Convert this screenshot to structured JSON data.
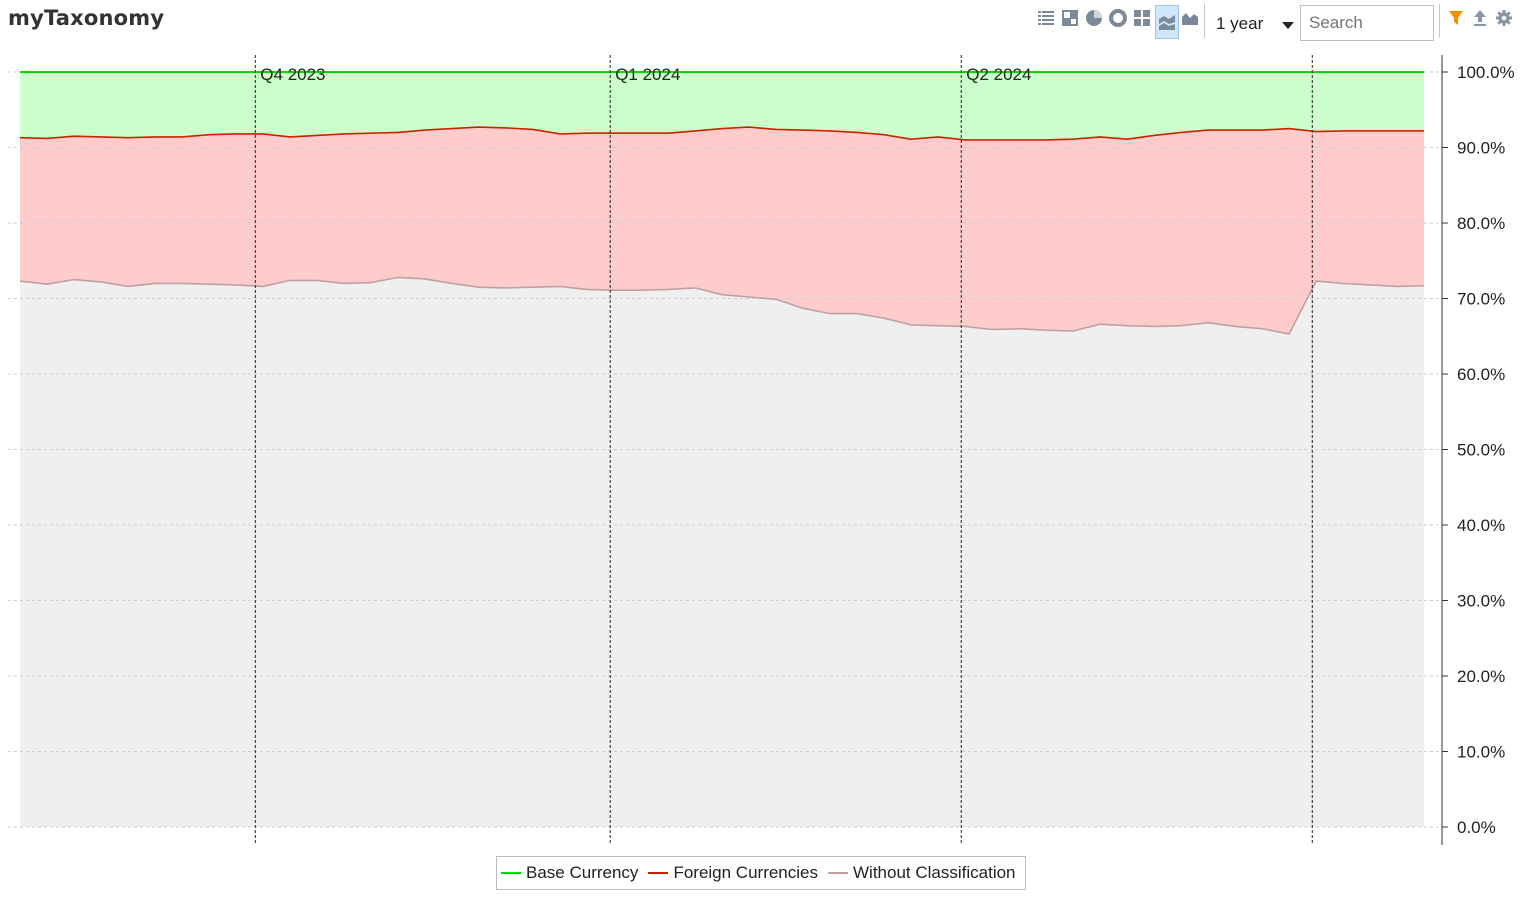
{
  "app": {
    "title": "myTaxonomy"
  },
  "toolbar": {
    "range_value": "1 year",
    "search_placeholder": "Search",
    "icons": [
      "list-icon",
      "treemap-icon",
      "pie-chart-icon",
      "donut-chart-icon",
      "grid-icon",
      "stacked-area-chart-icon",
      "area-chart-icon",
      "filter-icon",
      "export-icon",
      "settings-icon"
    ]
  },
  "colors": {
    "base": "#00dd00",
    "base_fill": "#ccffcc",
    "foreign": "#cc2200",
    "foreign_fill": "#ffcccc",
    "without": "#c0a0a0",
    "without_fill": "#efefef",
    "filter": "#f29000"
  },
  "chart_data": {
    "type": "area",
    "stacked": true,
    "x_start": "2023-08-01",
    "x_end": "2024-07-31",
    "ylim": [
      0,
      100
    ],
    "yticks": [
      "0.0%",
      "10.0%",
      "20.0%",
      "30.0%",
      "40.0%",
      "50.0%",
      "60.0%",
      "70.0%",
      "80.0%",
      "90.0%",
      "100.0%"
    ],
    "quarter_markers": [
      {
        "date": "2023-10-01",
        "label": "Q4 2023"
      },
      {
        "date": "2024-01-01",
        "label": "Q1 2024"
      },
      {
        "date": "2024-04-01",
        "label": "Q2 2024"
      },
      {
        "date": "2024-07-01",
        "label": ""
      }
    ],
    "x": [
      "2023-08-01",
      "2023-08-08",
      "2023-08-15",
      "2023-08-22",
      "2023-08-29",
      "2023-09-05",
      "2023-09-12",
      "2023-09-19",
      "2023-09-26",
      "2023-10-03",
      "2023-10-10",
      "2023-10-17",
      "2023-10-24",
      "2023-10-31",
      "2023-11-07",
      "2023-11-14",
      "2023-11-21",
      "2023-11-28",
      "2023-12-05",
      "2023-12-12",
      "2023-12-19",
      "2023-12-26",
      "2024-01-02",
      "2024-01-09",
      "2024-01-16",
      "2024-01-23",
      "2024-01-30",
      "2024-02-06",
      "2024-02-13",
      "2024-02-20",
      "2024-02-27",
      "2024-03-05",
      "2024-03-12",
      "2024-03-19",
      "2024-03-26",
      "2024-04-02",
      "2024-04-09",
      "2024-04-16",
      "2024-04-23",
      "2024-04-30",
      "2024-05-07",
      "2024-05-14",
      "2024-05-21",
      "2024-05-28",
      "2024-06-04",
      "2024-06-11",
      "2024-06-18",
      "2024-06-25",
      "2024-07-02",
      "2024-07-09",
      "2024-07-16",
      "2024-07-23",
      "2024-07-30"
    ],
    "series": [
      {
        "name": "Without Classification",
        "values": [
          72.3,
          71.9,
          72.5,
          72.2,
          71.6,
          72.0,
          72.0,
          71.9,
          71.8,
          71.6,
          72.4,
          72.4,
          72.0,
          72.1,
          72.8,
          72.6,
          72.0,
          71.5,
          71.4,
          71.5,
          71.6,
          71.2,
          71.1,
          71.1,
          71.2,
          71.4,
          70.5,
          70.2,
          69.9,
          68.7,
          68.0,
          68.0,
          67.4,
          66.5,
          66.4,
          66.3,
          65.9,
          66.0,
          65.8,
          65.7,
          66.6,
          66.4,
          66.3,
          66.4,
          66.8,
          66.3,
          66.0,
          65.3,
          72.3,
          72.0,
          71.8,
          71.6,
          71.7
        ]
      },
      {
        "name": "Foreign Currencies",
        "values": [
          19.0,
          19.3,
          19.0,
          19.2,
          19.7,
          19.4,
          19.4,
          19.8,
          20.0,
          20.2,
          19.0,
          19.2,
          19.8,
          19.8,
          19.2,
          19.7,
          20.5,
          21.2,
          21.2,
          20.9,
          20.2,
          20.7,
          20.8,
          20.8,
          20.7,
          20.8,
          22.0,
          22.5,
          22.5,
          23.6,
          24.2,
          24.0,
          24.3,
          24.6,
          25.0,
          24.7,
          25.1,
          25.0,
          25.2,
          25.4,
          24.8,
          24.7,
          25.3,
          25.6,
          25.5,
          26.0,
          26.3,
          27.2,
          19.8,
          20.2,
          20.4,
          20.6,
          20.5
        ]
      },
      {
        "name": "Base Currency",
        "values": [
          8.7,
          8.8,
          8.5,
          8.6,
          8.7,
          8.6,
          8.6,
          8.3,
          8.2,
          8.2,
          8.6,
          8.4,
          8.2,
          8.1,
          8.0,
          7.7,
          7.5,
          7.3,
          7.4,
          7.6,
          8.2,
          8.1,
          8.1,
          8.1,
          8.1,
          7.8,
          7.5,
          7.3,
          7.6,
          7.7,
          7.8,
          8.0,
          8.3,
          8.9,
          8.6,
          9.0,
          9.0,
          9.0,
          9.0,
          8.9,
          8.6,
          8.9,
          8.4,
          8.0,
          7.7,
          7.7,
          7.7,
          7.5,
          7.9,
          7.8,
          7.8,
          7.8,
          7.8
        ]
      }
    ]
  },
  "legend": {
    "items": [
      {
        "label": "Base Currency",
        "color": "#00dd00"
      },
      {
        "label": "Foreign Currencies",
        "color": "#cc2200"
      },
      {
        "label": "Without Classification",
        "color": "#c0a0a0"
      }
    ]
  }
}
